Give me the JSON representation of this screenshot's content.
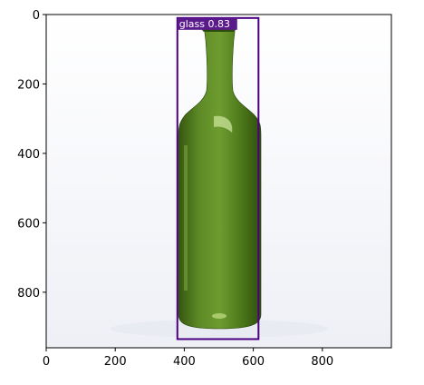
{
  "figure": {
    "background": "#ffffff",
    "axis_color": "#000000",
    "x_axis": {
      "range": [
        0,
        1000
      ],
      "ticks": [
        0,
        200,
        400,
        600,
        800
      ]
    },
    "y_axis": {
      "range": [
        0,
        960
      ],
      "inverted": true,
      "ticks": [
        0,
        200,
        400,
        600,
        800
      ]
    }
  },
  "image": {
    "subject": "green glass wine bottle on white background",
    "bottle_color": "#4e7a1c",
    "bottle_dark": "#2c4a0c",
    "bottle_highlight": "#9cc45a"
  },
  "detection": {
    "label": "glass 0.83",
    "box_color": "#4b0082",
    "label_bg": "#5a1a8c",
    "box": {
      "x1": 380,
      "y1": 10,
      "x2": 615,
      "y2": 935
    }
  }
}
